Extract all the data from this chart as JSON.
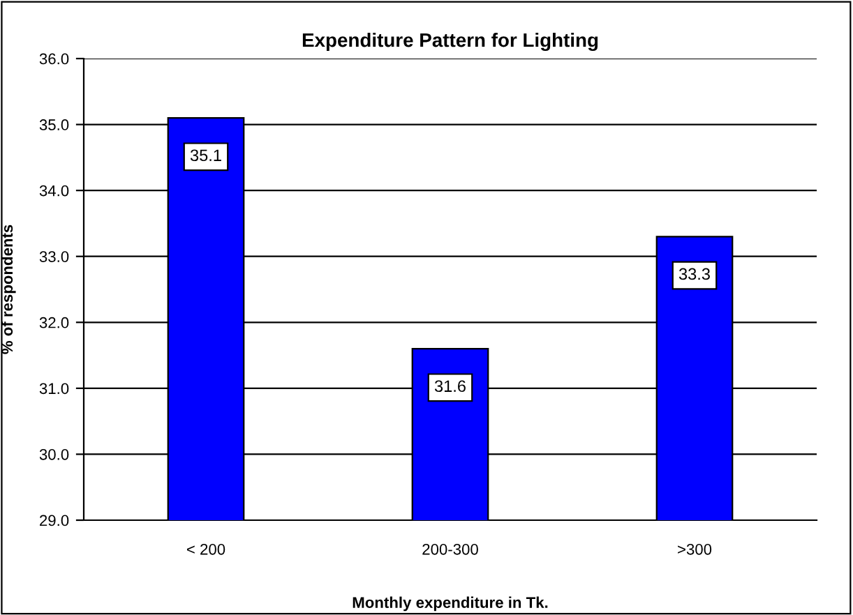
{
  "chart_data": {
    "type": "bar",
    "title": "Expenditure Pattern for Lighting",
    "xlabel": "Monthly expenditure in Tk.",
    "ylabel": "% of respondents",
    "categories": [
      "< 200",
      "200-300",
      ">300"
    ],
    "values": [
      35.1,
      31.6,
      33.3
    ],
    "color": "#0000ff",
    "ylim": [
      29.0,
      36.0
    ],
    "yticks": [
      {
        "value": 29,
        "label": "29.0"
      },
      {
        "value": 30,
        "label": "30.0"
      },
      {
        "value": 31,
        "label": "31.0"
      },
      {
        "value": 32,
        "label": "32.0"
      },
      {
        "value": 33,
        "label": "33.0"
      },
      {
        "value": 34,
        "label": "34.0"
      },
      {
        "value": 35,
        "label": "35.0"
      },
      {
        "value": 36,
        "label": "36.0"
      }
    ],
    "grid": "y",
    "data_labels": true
  }
}
